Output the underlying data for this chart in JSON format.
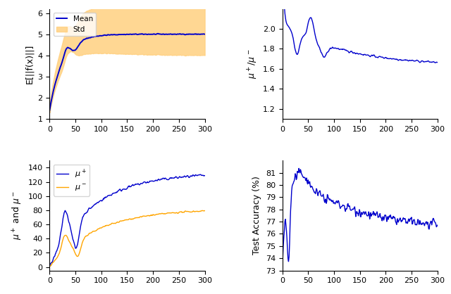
{
  "blue_color": "#0000CC",
  "orange_color": "#FFA500",
  "orange_fill": "#FFD080",
  "x_max": 300,
  "n_points": 301,
  "top_left": {
    "ylabel": "E[||f(x)||]",
    "ylim": [
      1,
      6.2
    ],
    "yticks": [
      1,
      2,
      3,
      4,
      5,
      6
    ],
    "xlim": [
      0,
      300
    ],
    "xticks": [
      0,
      50,
      100,
      150,
      200,
      250,
      300
    ]
  },
  "top_right": {
    "ylabel": "$\\mu^+/\\mu^-$",
    "ylim": [
      1.1,
      2.2
    ],
    "yticks": [
      1.2,
      1.4,
      1.6,
      1.8,
      2.0
    ],
    "xlim": [
      0,
      300
    ],
    "xticks": [
      0,
      50,
      100,
      150,
      200,
      250,
      300
    ]
  },
  "bottom_left": {
    "ylabel": "$\\mu^+$ and $\\mu^-$",
    "ylim": [
      -5,
      150
    ],
    "yticks": [
      0,
      20,
      40,
      60,
      80,
      100,
      120,
      140
    ],
    "xlim": [
      0,
      300
    ],
    "xticks": [
      0,
      50,
      100,
      150,
      200,
      250,
      300
    ]
  },
  "bottom_right": {
    "ylabel": "Test Accuracy (%)",
    "ylim": [
      73,
      82
    ],
    "yticks": [
      73,
      74,
      75,
      76,
      77,
      78,
      79,
      80,
      81
    ],
    "xlim": [
      0,
      300
    ],
    "xticks": [
      0,
      50,
      100,
      150,
      200,
      250,
      300
    ]
  }
}
